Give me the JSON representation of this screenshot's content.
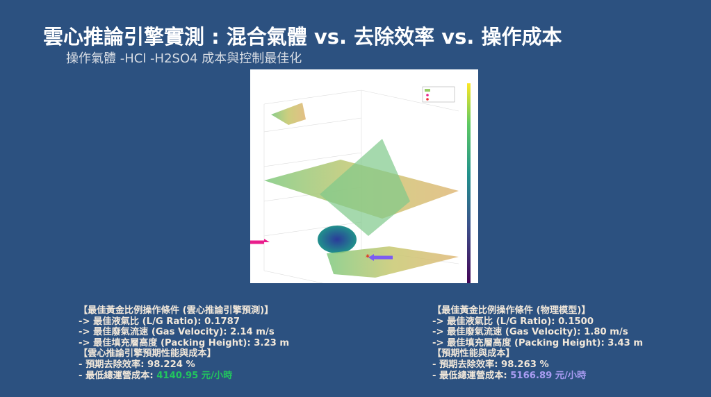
{
  "header": {
    "title": "雲心推論引擎實測 : 混合氣體 vs. 去除效率 vs. 操作成本",
    "subtitle": "操作氣體 -HCl  -H2SO4 成本與控制最佳化"
  },
  "left": {
    "lines": [
      "【最佳黃金比例操作條件 (雲心推論引擎預測)】",
      "-> 最佳液氣比 (L/G Ratio): 0.1787",
      "-> 最佳廢氣流速 (Gas Velocity): 2.14 m/s",
      "-> 最佳填充層高度 (Packing Height): 3.23 m",
      "【雲心推論引擎預期性能與成本】",
      "- 預期去除效率: 98.224 %"
    ],
    "cost_label": "- 最低總運營成本: ",
    "cost_value": "4140.95 元/小時"
  },
  "right": {
    "lines": [
      "【最佳黃金比例操作條件 (物理模型)】",
      "-> 最佳液氣比 (L/G Ratio): 0.1500",
      "-> 最佳廢氣流速 (Gas Velocity): 1.80 m/s",
      "-> 最佳填充層高度 (Packing Height): 3.43 m",
      "【預期性能與成本】",
      "- 預期去除效率: 98.263 %"
    ],
    "cost_label": "- 最低總運營成本: ",
    "cost_value": "5166.89 元/小時"
  }
}
